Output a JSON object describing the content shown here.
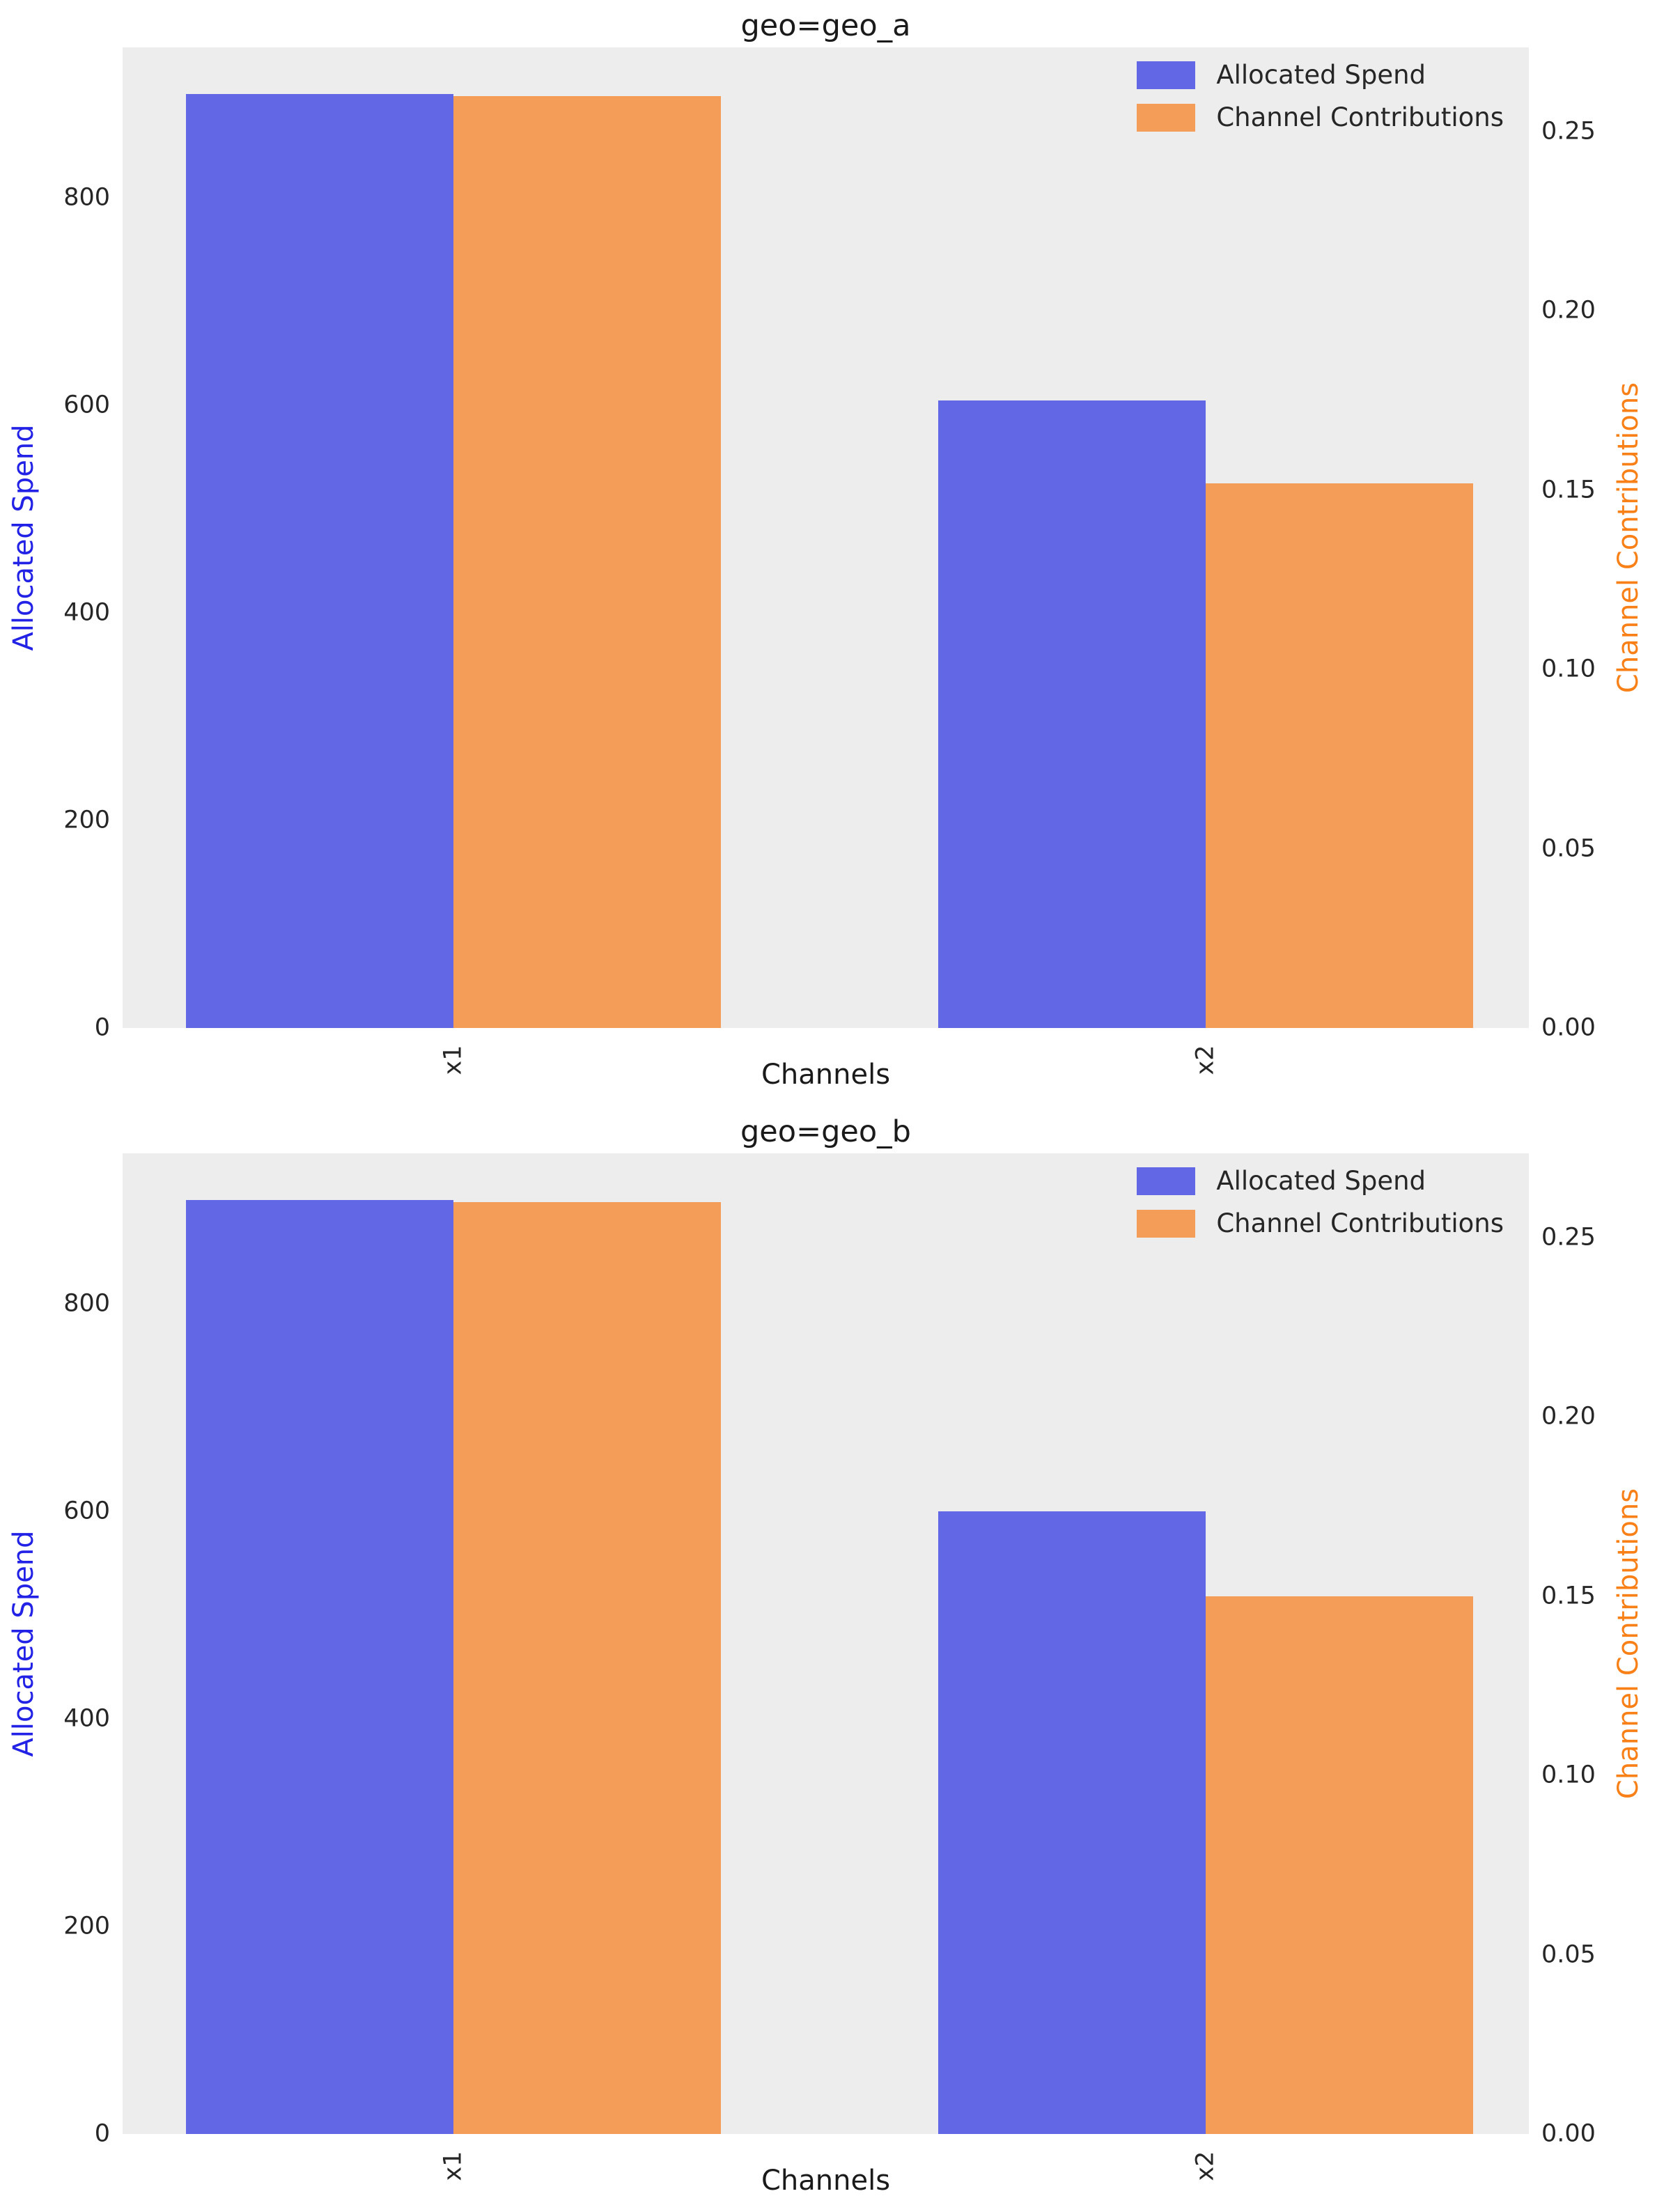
{
  "figure": {
    "background": "#ffffff",
    "plot_background": "#ededed",
    "text_color": "#262626"
  },
  "chart_data": [
    {
      "type": "bar",
      "title": "geo=geo_a",
      "xlabel": "Channels",
      "categories": [
        "x1",
        "x2"
      ],
      "series": [
        {
          "name": "Allocated Spend",
          "axis": "left",
          "color": "#6267e6",
          "values": [
            900,
            605
          ]
        },
        {
          "name": "Channel Contributions",
          "axis": "right",
          "color": "#f49d58",
          "values": [
            0.26,
            0.152
          ]
        }
      ],
      "left_axis": {
        "label": "Allocated Spend",
        "color": "#2222e6",
        "ticks": [
          0,
          200,
          400,
          600,
          800
        ],
        "max": 945
      },
      "right_axis": {
        "label": "Channel Contributions",
        "color": "#f88017",
        "ticks": [
          "0.00",
          "0.05",
          "0.10",
          "0.15",
          "0.20",
          "0.25"
        ],
        "max": 0.2735
      },
      "legend": {
        "position": "upper right",
        "entries": [
          "Allocated Spend",
          "Channel Contributions"
        ]
      },
      "grid": false
    },
    {
      "type": "bar",
      "title": "geo=geo_b",
      "xlabel": "Channels",
      "categories": [
        "x1",
        "x2"
      ],
      "series": [
        {
          "name": "Allocated Spend",
          "axis": "left",
          "color": "#6267e6",
          "values": [
            900,
            600
          ]
        },
        {
          "name": "Channel Contributions",
          "axis": "right",
          "color": "#f49d58",
          "values": [
            0.26,
            0.15
          ]
        }
      ],
      "left_axis": {
        "label": "Allocated Spend",
        "color": "#2222e6",
        "ticks": [
          0,
          200,
          400,
          600,
          800
        ],
        "max": 945
      },
      "right_axis": {
        "label": "Channel Contributions",
        "color": "#f88017",
        "ticks": [
          "0.00",
          "0.05",
          "0.10",
          "0.15",
          "0.20",
          "0.25"
        ],
        "max": 0.2735
      },
      "legend": {
        "position": "upper right",
        "entries": [
          "Allocated Spend",
          "Channel Contributions"
        ]
      },
      "grid": false
    }
  ]
}
